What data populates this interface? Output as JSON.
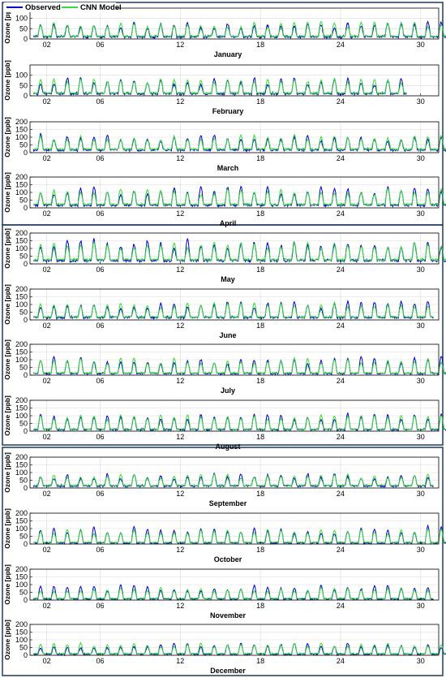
{
  "chart_data": {
    "type": "line",
    "ylabel": "Ozone [ppb]",
    "legend": {
      "placement": "top-left",
      "entries": [
        {
          "name": "Observed",
          "color": "#0000cc"
        },
        {
          "name": "CNN Model",
          "color": "#33dd33"
        }
      ]
    },
    "xticks": [
      "02",
      "06",
      "12",
      "18",
      "24",
      "30"
    ],
    "xtick_days": [
      2,
      6,
      12,
      18,
      24,
      30
    ],
    "grid": true,
    "seasons": [
      [
        0,
        1,
        2,
        3
      ],
      [
        4,
        5,
        6,
        7
      ],
      [
        8,
        9,
        10,
        11
      ]
    ],
    "months": [
      {
        "name": "January",
        "days": 31,
        "ylim": [
          0,
          150
        ],
        "yticks": [
          0,
          50,
          100
        ],
        "obs_peak": 55,
        "mod_peak": 58,
        "obs_base": 12,
        "mod_base": 15
      },
      {
        "name": "February",
        "days": 28,
        "ylim": [
          0,
          150
        ],
        "yticks": [
          0,
          50,
          100
        ],
        "obs_peak": 60,
        "mod_peak": 58,
        "obs_base": 12,
        "mod_base": 15
      },
      {
        "name": "March",
        "days": 31,
        "ylim": [
          0,
          200
        ],
        "yticks": [
          0,
          50,
          100,
          150,
          200
        ],
        "obs_peak": 75,
        "mod_peak": 75,
        "obs_base": 20,
        "mod_base": 25
      },
      {
        "name": "April",
        "days": 31,
        "ylim": [
          0,
          200
        ],
        "yticks": [
          0,
          50,
          100,
          150,
          200
        ],
        "obs_peak": 95,
        "mod_peak": 85,
        "obs_base": 20,
        "mod_base": 25
      },
      {
        "name": "May",
        "days": 31,
        "ylim": [
          0,
          200
        ],
        "yticks": [
          0,
          50,
          100,
          150,
          200
        ],
        "obs_peak": 105,
        "mod_peak": 95,
        "obs_base": 25,
        "mod_base": 30
      },
      {
        "name": "June",
        "days": 30,
        "ylim": [
          0,
          200
        ],
        "yticks": [
          0,
          50,
          100,
          150,
          200
        ],
        "obs_peak": 80,
        "mod_peak": 80,
        "obs_base": 18,
        "mod_base": 22
      },
      {
        "name": "July",
        "days": 31,
        "ylim": [
          0,
          200
        ],
        "yticks": [
          0,
          50,
          100,
          150,
          200
        ],
        "obs_peak": 85,
        "mod_peak": 80,
        "obs_base": 12,
        "mod_base": 15
      },
      {
        "name": "August",
        "days": 31,
        "ylim": [
          0,
          200
        ],
        "yticks": [
          0,
          50,
          100,
          150,
          200
        ],
        "obs_peak": 80,
        "mod_peak": 78,
        "obs_base": 12,
        "mod_base": 15
      },
      {
        "name": "September",
        "days": 30,
        "ylim": [
          0,
          200
        ],
        "yticks": [
          0,
          50,
          100,
          150,
          200
        ],
        "obs_peak": 60,
        "mod_peak": 62,
        "obs_base": 15,
        "mod_base": 18
      },
      {
        "name": "October",
        "days": 31,
        "ylim": [
          0,
          200
        ],
        "yticks": [
          0,
          50,
          100,
          150,
          200
        ],
        "obs_peak": 85,
        "mod_peak": 70,
        "obs_base": 8,
        "mod_base": 12
      },
      {
        "name": "November",
        "days": 30,
        "ylim": [
          0,
          200
        ],
        "yticks": [
          0,
          50,
          100,
          150,
          200
        ],
        "obs_peak": 70,
        "mod_peak": 60,
        "obs_base": 8,
        "mod_base": 12
      },
      {
        "name": "December",
        "days": 31,
        "ylim": [
          0,
          200
        ],
        "yticks": [
          0,
          50,
          100,
          150,
          200
        ],
        "obs_peak": 55,
        "mod_peak": 58,
        "obs_base": 8,
        "mod_base": 12
      }
    ]
  }
}
